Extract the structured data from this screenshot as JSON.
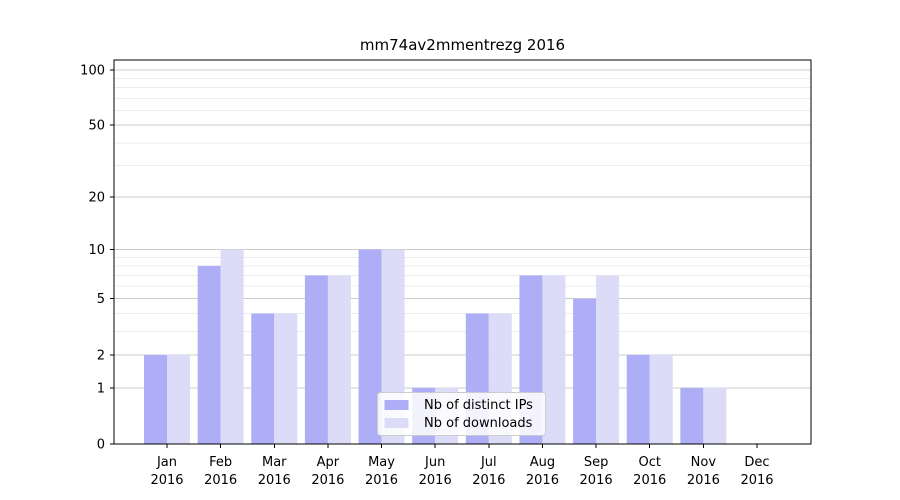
{
  "title": "mm74av2mmentrezg 2016",
  "colors": {
    "ips_bar": "#aeaef6",
    "downloads_bar": "#dcdcf8",
    "grid_major": "#cccccc",
    "grid_minor": "#ececec",
    "axis": "#000000",
    "tick_label": "#000000",
    "legend_bg": "#ffffff",
    "legend_border": "#cccccc"
  },
  "legend": {
    "items": [
      {
        "label": "Nb of distinct IPs",
        "color": "#aeaef6"
      },
      {
        "label": "Nb of downloads",
        "color": "#dcdcf8"
      }
    ]
  },
  "chart_data": {
    "type": "bar",
    "title": "mm74av2mmentrezg 2016",
    "categories": [
      "Jan 2016",
      "Feb 2016",
      "Mar 2016",
      "Apr 2016",
      "May 2016",
      "Jun 2016",
      "Jul 2016",
      "Aug 2016",
      "Sep 2016",
      "Oct 2016",
      "Nov 2016",
      "Dec 2016"
    ],
    "series": [
      {
        "name": "Nb of distinct IPs",
        "color": "#aeaef6",
        "values": [
          2,
          8,
          4,
          7,
          10,
          1,
          4,
          7,
          5,
          2,
          1,
          0
        ]
      },
      {
        "name": "Nb of downloads",
        "color": "#dcdcf8",
        "values": [
          2,
          10,
          4,
          7,
          10,
          1,
          4,
          7,
          7,
          2,
          1,
          0
        ]
      }
    ],
    "xlabel": "",
    "ylabel": "",
    "yscale": "log1p",
    "ylim": [
      0,
      113
    ],
    "y_major_ticks": [
      0,
      1,
      2,
      5,
      10,
      20,
      50,
      100
    ],
    "y_minor_gridlines": [
      3,
      4,
      6,
      7,
      8,
      9,
      30,
      40,
      60,
      70,
      80,
      90
    ],
    "grid": true,
    "legend_position": "lower center"
  }
}
